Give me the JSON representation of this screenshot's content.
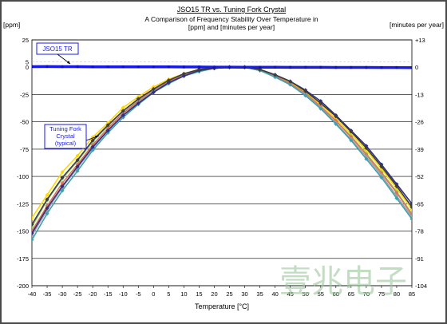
{
  "chart_data": {
    "type": "line",
    "title": "JSO15 TR vs. Tuning Fork Crystal",
    "subtitle": "A Comparison of Frequency Stability Over Temperature in [ppm] and [minutes per year]",
    "xlabel": "Temperature [°C]",
    "ylabel_left": "[ppm]",
    "ylabel_right": "[minutes per year]",
    "xlim": [
      -40,
      85
    ],
    "ylim": [
      -200,
      25
    ],
    "x_ticks": [
      "-40",
      "-35",
      "-30",
      "-25",
      "-20",
      "-15",
      "-10",
      "-5",
      "0",
      "5",
      "10",
      "15",
      "20",
      "25",
      "30",
      "35",
      "40",
      "45",
      "50",
      "55",
      "60",
      "65",
      "70",
      "75",
      "80",
      "85"
    ],
    "y_ticks_left": [
      "25",
      "5",
      "0",
      "-25",
      "-50",
      "-75",
      "-100",
      "-125",
      "-150",
      "-175",
      "-200"
    ],
    "y_ticks_right": [
      "+13",
      "0",
      "-13",
      "-26",
      "-39",
      "-52",
      "-65",
      "-78",
      "-91",
      "-104"
    ],
    "grid": true,
    "annotations": [
      "JSO15 TR",
      "Tuning Fork Crystal (typical)"
    ],
    "watermark": "壹兆电子",
    "series": [
      {
        "name": "JSO15 TR",
        "color": "#1a1ae6",
        "x": [
          -40,
          -35,
          -30,
          -25,
          -20,
          -15,
          -10,
          -5,
          0,
          5,
          10,
          15,
          20,
          25,
          30,
          35,
          40,
          45,
          50,
          55,
          60,
          65,
          70,
          75,
          80,
          85
        ],
        "y": [
          0.5,
          0.6,
          0.5,
          0.5,
          0.4,
          0.4,
          0.4,
          0.3,
          0.3,
          0.3,
          0.2,
          0.2,
          0.1,
          0.1,
          0.0,
          0.0,
          0.0,
          -0.1,
          -0.1,
          -0.1,
          -0.2,
          -0.2,
          -0.2,
          -0.3,
          -0.3,
          -0.4
        ]
      },
      {
        "color": "#ffd700",
        "x": [
          -40,
          -35,
          -30,
          -25,
          -20,
          -15,
          -10,
          -5,
          0,
          5,
          10,
          15,
          20,
          25,
          30,
          35,
          40,
          45,
          50,
          55,
          60,
          65,
          70,
          75,
          80,
          85
        ],
        "y": [
          -138,
          -117,
          -96,
          -81,
          -64,
          -51,
          -37,
          -27,
          -18,
          -11,
          -6,
          -2,
          -1,
          0,
          0,
          -3,
          -8,
          -14,
          -23,
          -34,
          -47,
          -61,
          -76,
          -93,
          -111,
          -130
        ]
      },
      {
        "color": "#90d050",
        "x": [
          -40,
          -35,
          -30,
          -25,
          -20,
          -15,
          -10,
          -5,
          0,
          5,
          10,
          15,
          20,
          25,
          30,
          35,
          40,
          45,
          50,
          55,
          60,
          65,
          70,
          75,
          80,
          85
        ],
        "y": [
          -146,
          -122,
          -102,
          -86,
          -68,
          -54,
          -40,
          -30,
          -20,
          -12,
          -7,
          -3,
          -1,
          0,
          0,
          -3,
          -8,
          -15,
          -24,
          -36,
          -49,
          -63,
          -79,
          -96,
          -114,
          -134
        ]
      },
      {
        "color": "#e07060",
        "x": [
          -40,
          -35,
          -30,
          -25,
          -20,
          -15,
          -10,
          -5,
          0,
          5,
          10,
          15,
          20,
          25,
          30,
          35,
          40,
          45,
          50,
          55,
          60,
          65,
          70,
          75,
          80,
          85
        ],
        "y": [
          -150,
          -127,
          -106,
          -89,
          -71,
          -56,
          -42,
          -31,
          -21,
          -13,
          -7,
          -3,
          -1,
          0,
          0,
          -3,
          -8,
          -15,
          -24,
          -36,
          -49,
          -64,
          -80,
          -97,
          -115,
          -135
        ]
      },
      {
        "color": "#a0a0a0",
        "x": [
          -40,
          -35,
          -30,
          -25,
          -20,
          -15,
          -10,
          -5,
          0,
          5,
          10,
          15,
          20,
          25,
          30,
          35,
          40,
          45,
          50,
          55,
          60,
          65,
          70,
          75,
          80,
          85
        ],
        "y": [
          -154,
          -131,
          -110,
          -92,
          -74,
          -58,
          -44,
          -32,
          -22,
          -14,
          -8,
          -3,
          -1,
          0,
          0,
          -3,
          -9,
          -16,
          -25,
          -37,
          -51,
          -66,
          -82,
          -99,
          -118,
          -137
        ]
      },
      {
        "color": "#40a0b0",
        "x": [
          -40,
          -35,
          -30,
          -25,
          -20,
          -15,
          -10,
          -5,
          0,
          5,
          10,
          15,
          20,
          25,
          30,
          35,
          40,
          45,
          50,
          55,
          60,
          65,
          70,
          75,
          80,
          85
        ],
        "y": [
          -158,
          -134,
          -113,
          -95,
          -76,
          -60,
          -46,
          -34,
          -23,
          -15,
          -8,
          -4,
          -1,
          0,
          0,
          -3,
          -9,
          -16,
          -26,
          -38,
          -52,
          -67,
          -84,
          -101,
          -120,
          -139
        ]
      },
      {
        "color": "#303080",
        "x": [
          -40,
          -35,
          -30,
          -25,
          -20,
          -15,
          -10,
          -5,
          0,
          5,
          10,
          15,
          20,
          25,
          30,
          35,
          40,
          45,
          50,
          55,
          60,
          65,
          70,
          75,
          80,
          85
        ],
        "y": [
          -152,
          -129,
          -109,
          -91,
          -73,
          -58,
          -44,
          -33,
          -23,
          -14,
          -8,
          -3,
          -1,
          0,
          0,
          -2,
          -7,
          -13,
          -21,
          -31,
          -44,
          -58,
          -72,
          -89,
          -107,
          -125
        ]
      },
      {
        "color": "#3d3d3d",
        "x": [
          -40,
          -35,
          -30,
          -25,
          -20,
          -15,
          -10,
          -5,
          0,
          5,
          10,
          15,
          20,
          25,
          30,
          35,
          40,
          45,
          50,
          55,
          60,
          65,
          70,
          75,
          80,
          85
        ],
        "y": [
          -144,
          -121,
          -101,
          -85,
          -67,
          -53,
          -40,
          -29,
          -20,
          -12,
          -6,
          -2,
          -1,
          0,
          0,
          -2,
          -7,
          -13,
          -22,
          -33,
          -45,
          -59,
          -74,
          -91,
          -109,
          -128
        ]
      }
    ]
  }
}
